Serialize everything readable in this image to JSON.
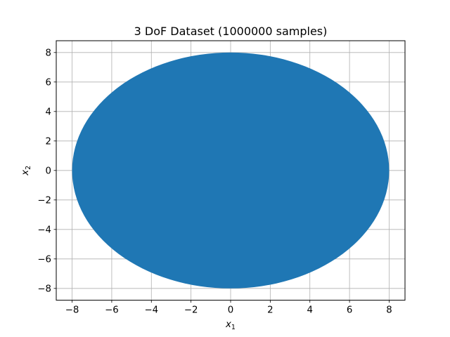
{
  "chart_data": {
    "type": "scatter",
    "title": "3 DoF Dataset (1000000 samples)",
    "xlabel": {
      "var": "x",
      "sub": "1"
    },
    "ylabel": {
      "var": "x",
      "sub": "2"
    },
    "xlim": [
      -8.8,
      8.8
    ],
    "ylim": [
      -8.8,
      8.8
    ],
    "xticks": [
      -8,
      -6,
      -4,
      -2,
      0,
      2,
      4,
      6,
      8
    ],
    "yticks": [
      -8,
      -6,
      -4,
      -2,
      0,
      2,
      4,
      6,
      8
    ],
    "grid": true,
    "series": [
      {
        "color": "#1f77b4",
        "shape": "filled disk",
        "center": [
          0,
          0
        ],
        "radius": 8,
        "count": 1000000
      }
    ]
  }
}
